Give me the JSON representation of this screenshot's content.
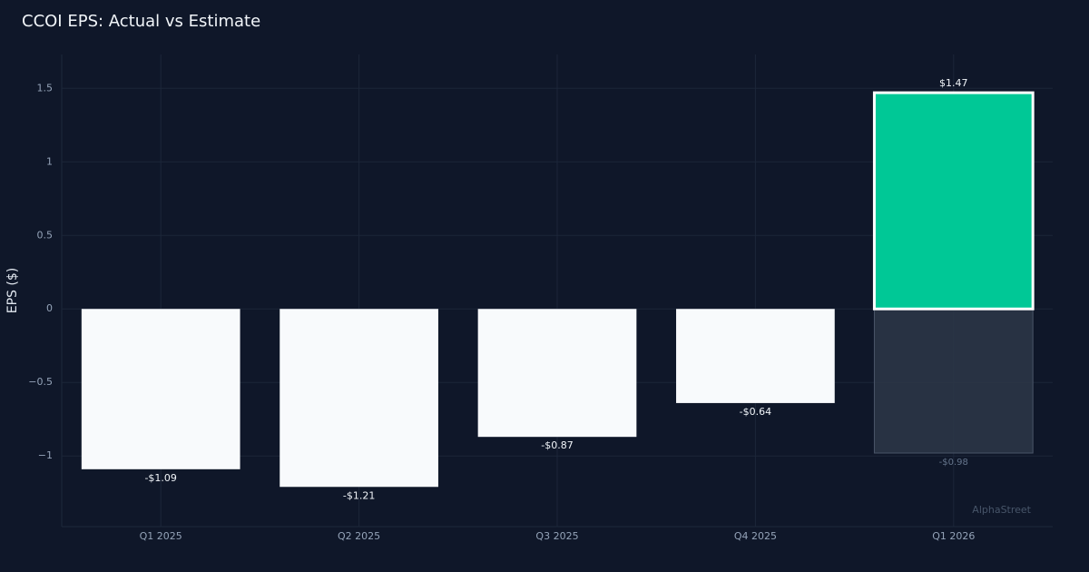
{
  "chart_data": {
    "type": "bar",
    "title": "CCOI EPS: Actual vs Estimate",
    "ylabel": "EPS ($)",
    "watermark": "AlphaStreet",
    "categories": [
      "Q1 2025",
      "Q2 2025",
      "Q3 2025",
      "Q4 2025",
      "Q1 2026"
    ],
    "series": [
      {
        "color": "#2d3748",
        "edgecolor": "#4a5568",
        "label_color": "#64748b",
        "values": [
          null,
          null,
          null,
          null,
          -0.98
        ],
        "value_labels": [
          null,
          null,
          null,
          null,
          "-$0.98"
        ]
      },
      {
        "colors": [
          "#f8fafc",
          "#f8fafc",
          "#f8fafc",
          "#f8fafc",
          "#00c896"
        ],
        "edgecolors": [
          null,
          null,
          null,
          null,
          "#ffffff"
        ],
        "label_color": "#f1f5f9",
        "values": [
          -1.09,
          -1.21,
          -0.87,
          -0.64,
          1.47
        ],
        "value_labels": [
          "-$1.09",
          "-$1.21",
          "-$0.87",
          "-$0.64",
          "$1.47"
        ]
      }
    ],
    "ylim": [
      -1.48,
      1.73
    ],
    "yticks": [
      {
        "value": -1,
        "label": "−1"
      },
      {
        "value": -0.5,
        "label": "−0.5"
      },
      0,
      0.5,
      1,
      1.5
    ],
    "grid": true
  }
}
